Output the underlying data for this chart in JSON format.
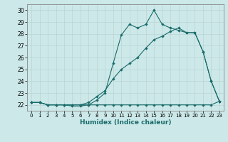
{
  "xlabel": "Humidex (Indice chaleur)",
  "bg_color": "#cce8e8",
  "grid_color": "#b8d0d0",
  "line_color": "#1a6b6b",
  "xlim": [
    -0.5,
    23.5
  ],
  "ylim": [
    21.5,
    30.5
  ],
  "xticks": [
    0,
    1,
    2,
    3,
    4,
    5,
    6,
    7,
    8,
    9,
    10,
    11,
    12,
    13,
    14,
    15,
    16,
    17,
    18,
    19,
    20,
    21,
    22,
    23
  ],
  "yticks": [
    22,
    23,
    24,
    25,
    26,
    27,
    28,
    29,
    30
  ],
  "line1_x": [
    0,
    1,
    2,
    3,
    4,
    5,
    6,
    7,
    8,
    9,
    10,
    11,
    12,
    13,
    14,
    15,
    16,
    17,
    18,
    19,
    20,
    21,
    22,
    23
  ],
  "line1_y": [
    22.2,
    22.2,
    22.0,
    22.0,
    22.0,
    22.0,
    22.0,
    22.0,
    22.0,
    22.0,
    22.0,
    22.0,
    22.0,
    22.0,
    22.0,
    22.0,
    22.0,
    22.0,
    22.0,
    22.0,
    22.0,
    22.0,
    22.0,
    22.3
  ],
  "line2_x": [
    0,
    1,
    2,
    3,
    4,
    5,
    6,
    7,
    8,
    9,
    10,
    11,
    12,
    13,
    14,
    15,
    16,
    17,
    18,
    19,
    20,
    21,
    22,
    23
  ],
  "line2_y": [
    22.2,
    22.2,
    22.0,
    22.0,
    22.0,
    22.0,
    22.0,
    22.2,
    22.7,
    23.2,
    24.2,
    25.0,
    25.5,
    26.0,
    26.8,
    27.5,
    27.8,
    28.2,
    28.5,
    28.1,
    28.1,
    26.5,
    24.0,
    22.3
  ],
  "line3_x": [
    0,
    1,
    2,
    3,
    4,
    5,
    6,
    7,
    8,
    9,
    10,
    11,
    12,
    13,
    14,
    15,
    16,
    17,
    18,
    19,
    20,
    21,
    22,
    23
  ],
  "line3_y": [
    22.2,
    22.2,
    22.0,
    22.0,
    22.0,
    21.9,
    21.9,
    22.0,
    22.4,
    23.0,
    25.5,
    27.9,
    28.8,
    28.5,
    28.8,
    30.0,
    28.8,
    28.5,
    28.3,
    28.1,
    28.1,
    26.5,
    24.0,
    22.3
  ]
}
